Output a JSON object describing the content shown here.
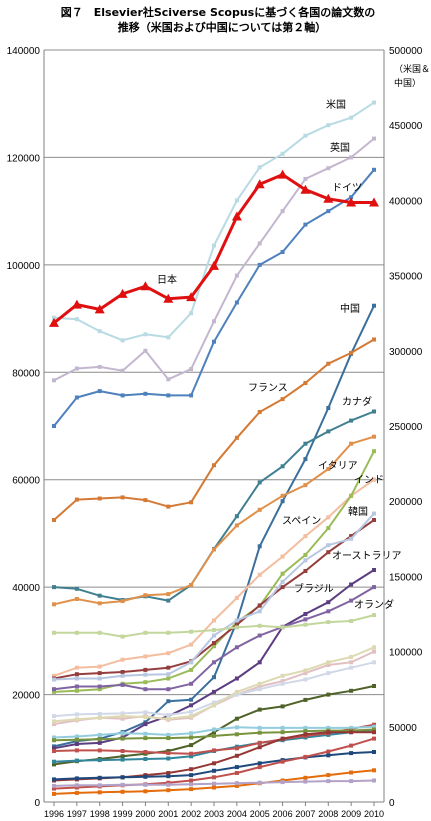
{
  "title_line1": "図７　Elsevier社Sciverse Scopusに基づく各国の論文数の",
  "title_line2": "推移（米国および中国については第２軸）",
  "y2_axis_label_line1": "（米国＆",
  "y2_axis_label_line2": "中国）",
  "chart_data": {
    "type": "line",
    "x": [
      "1996",
      "1997",
      "1998",
      "1999",
      "2000",
      "2001",
      "2002",
      "2003",
      "2004",
      "2005",
      "2006",
      "2007",
      "2008",
      "2009",
      "2010"
    ],
    "y_left": {
      "min": 0,
      "max": 140000,
      "ticks": [
        0,
        20000,
        40000,
        60000,
        80000,
        100000,
        120000,
        140000
      ]
    },
    "y_right": {
      "min": 0,
      "max": 500000,
      "ticks": [
        0,
        50000,
        100000,
        150000,
        200000,
        250000,
        300000,
        350000,
        400000,
        450000,
        500000
      ]
    },
    "grid": true,
    "series": [
      {
        "name": "米国",
        "axis": "right",
        "color": "#b8dbe3",
        "values": [
          322000,
          321000,
          313000,
          307000,
          311000,
          309000,
          325000,
          370000,
          400000,
          422000,
          431000,
          443000,
          450000,
          455000,
          465000
        ]
      },
      {
        "name": "英国",
        "axis": "left",
        "color": "#c3b6cf",
        "values": [
          78500,
          80700,
          81000,
          80300,
          84000,
          78700,
          80600,
          89500,
          98000,
          104000,
          110000,
          116000,
          118000,
          120000,
          123500
        ]
      },
      {
        "name": "ドイツ",
        "axis": "left",
        "color": "#4f81bd",
        "values": [
          70000,
          75300,
          76500,
          75700,
          76000,
          75700,
          75700,
          85700,
          93000,
          100000,
          102400,
          107500,
          110000,
          112600,
          117700
        ]
      },
      {
        "name": "日本",
        "axis": "left",
        "color": "#e01010",
        "values": [
          89200,
          92600,
          91700,
          94600,
          96000,
          93700,
          94000,
          99800,
          109000,
          115000,
          116800,
          114000,
          112300,
          111600,
          111600
        ]
      },
      {
        "name": "中国",
        "axis": "right",
        "color": "#3a6f9d",
        "values": [
          37000,
          40500,
          42000,
          46500,
          53000,
          67000,
          68000,
          83000,
          120000,
          170000,
          200000,
          228000,
          262000,
          298000,
          330000
        ]
      },
      {
        "name": "フランス",
        "axis": "left",
        "color": "#d47a34",
        "values": [
          52500,
          56300,
          56500,
          56700,
          56200,
          55000,
          55800,
          62700,
          67800,
          72600,
          75000,
          78000,
          81600,
          83600,
          86100
        ]
      },
      {
        "name": "カナダ",
        "axis": "left",
        "color": "#3f7f90",
        "values": [
          40000,
          39700,
          38400,
          37600,
          38300,
          37500,
          40400,
          47100,
          53200,
          59500,
          62500,
          66700,
          69000,
          71000,
          72700
        ]
      },
      {
        "name": "イタリア",
        "axis": "left",
        "color": "#e0904a",
        "values": [
          36800,
          37800,
          37000,
          37400,
          38500,
          38700,
          40400,
          47000,
          51500,
          54400,
          57000,
          59000,
          62000,
          66700,
          68000
        ]
      },
      {
        "name": "インド",
        "axis": "left",
        "color": "#f3bda0",
        "values": [
          23500,
          25000,
          25200,
          26500,
          27100,
          27700,
          29300,
          33800,
          38000,
          42300,
          45700,
          49500,
          53000,
          57000,
          60000
        ]
      },
      {
        "name": "韓国",
        "axis": "left",
        "color": "#9bbb59",
        "values": [
          20500,
          20700,
          21000,
          22000,
          22300,
          23000,
          24600,
          29000,
          33500,
          36500,
          42500,
          46000,
          51000,
          57000,
          65300
        ]
      },
      {
        "name": "スペイン",
        "axis": "left",
        "color": "#963d3d",
        "values": [
          23000,
          23800,
          24000,
          24200,
          24600,
          25000,
          26200,
          29600,
          33000,
          36600,
          40000,
          43000,
          46500,
          49500,
          52500
        ]
      },
      {
        "name": "オーストラリア",
        "axis": "left",
        "color": "#b7c7e2",
        "values": [
          22800,
          23000,
          23000,
          23500,
          23700,
          23800,
          26000,
          31000,
          33800,
          35500,
          41000,
          45000,
          47800,
          49000,
          53700
        ]
      },
      {
        "name": "ブラジル",
        "axis": "left",
        "color": "#5b3d80",
        "values": [
          10000,
          10800,
          11000,
          12000,
          14500,
          16000,
          18000,
          20500,
          23000,
          26000,
          32600,
          35000,
          37200,
          40500,
          43200
        ]
      },
      {
        "name": "オランダ",
        "axis": "left",
        "color": "#8064a2",
        "values": [
          21000,
          21500,
          21500,
          21800,
          21000,
          21000,
          22000,
          26000,
          28800,
          31000,
          32600,
          34000,
          35500,
          37500,
          40000
        ]
      },
      {
        "name": "",
        "axis": "left",
        "color": "#c3d69b",
        "values": [
          31500,
          31500,
          31500,
          30800,
          31500,
          31500,
          31700,
          32000,
          32500,
          32800,
          32500,
          33000,
          33500,
          33700,
          34800
        ]
      },
      {
        "name": "",
        "axis": "left",
        "color": "#e2c0c2",
        "values": [
          14500,
          15200,
          15700,
          15500,
          16000,
          15300,
          15700,
          18000,
          20000,
          21500,
          22500,
          24000,
          25500,
          26000,
          28000
        ]
      },
      {
        "name": "",
        "axis": "left",
        "color": "#d1d9e8",
        "values": [
          16000,
          16300,
          16400,
          16500,
          16700,
          16200,
          16800,
          18500,
          20000,
          21000,
          22000,
          22800,
          24000,
          25000,
          26000
        ]
      },
      {
        "name": "",
        "axis": "left",
        "color": "#ddd9b3",
        "values": [
          15000,
          15400,
          15700,
          16000,
          15800,
          15500,
          16000,
          18000,
          20500,
          22000,
          23500,
          24500,
          26000,
          27000,
          28800
        ]
      },
      {
        "name": "",
        "axis": "left",
        "color": "#4f6228",
        "values": [
          7000,
          7600,
          8000,
          8500,
          9000,
          9500,
          10600,
          13000,
          15500,
          17200,
          17800,
          19000,
          20000,
          20700,
          21600
        ]
      },
      {
        "name": "",
        "axis": "left",
        "color": "#31859c",
        "values": [
          7500,
          7700,
          7800,
          7900,
          8000,
          8100,
          8500,
          9500,
          10300,
          11000,
          11500,
          12000,
          12500,
          13000,
          13400
        ]
      },
      {
        "name": "",
        "axis": "left",
        "color": "#c0504d",
        "values": [
          9500,
          9600,
          9600,
          9500,
          9300,
          9100,
          9000,
          9600,
          10000,
          11000,
          11700,
          12300,
          12800,
          13600,
          14400
        ]
      },
      {
        "name": "",
        "axis": "left",
        "color": "#93cddd",
        "values": [
          12000,
          12200,
          12500,
          12800,
          12700,
          12500,
          12800,
          13500,
          13900,
          13800,
          13800,
          13800,
          13800,
          13800,
          14000
        ]
      },
      {
        "name": "",
        "axis": "left",
        "color": "#77933c",
        "values": [
          11500,
          11600,
          11700,
          11800,
          11900,
          11900,
          12000,
          12300,
          12600,
          12900,
          13000,
          13200,
          13300,
          13300,
          13500
        ]
      },
      {
        "name": "",
        "axis": "left",
        "color": "#953735",
        "values": [
          4000,
          4200,
          4400,
          4600,
          5000,
          5400,
          6100,
          7200,
          8600,
          10200,
          11800,
          12600,
          13000,
          13000,
          13000
        ]
      },
      {
        "name": "",
        "axis": "left",
        "color": "#1f497d",
        "values": [
          4200,
          4400,
          4500,
          4600,
          4700,
          4800,
          5000,
          5800,
          6500,
          7200,
          7800,
          8300,
          8700,
          9100,
          9300
        ]
      },
      {
        "name": "",
        "axis": "left",
        "color": "#c0504d",
        "values": [
          2500,
          2700,
          2900,
          3100,
          3300,
          3600,
          4000,
          4600,
          5400,
          6500,
          7500,
          8400,
          9400,
          10500,
          11800
        ]
      },
      {
        "name": "",
        "axis": "left",
        "color": "#e46c0a",
        "values": [
          1500,
          1700,
          1800,
          1900,
          2000,
          2200,
          2400,
          2700,
          3000,
          3500,
          4000,
          4500,
          5000,
          5500,
          5900
        ]
      },
      {
        "name": "",
        "axis": "left",
        "color": "#b3a2c7",
        "values": [
          3000,
          3100,
          3100,
          3200,
          3200,
          3200,
          3300,
          3400,
          3500,
          3600,
          3700,
          3800,
          3900,
          3900,
          4000
        ]
      }
    ]
  }
}
